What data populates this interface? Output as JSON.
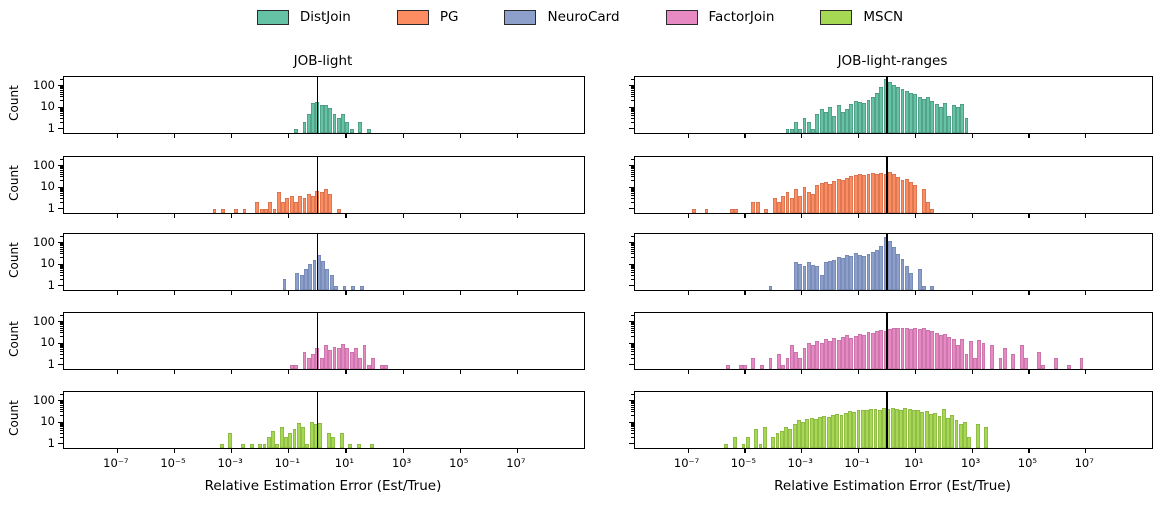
{
  "figure": {
    "description": "Histograms of relative estimation error per estimator on two benchmarks"
  },
  "legend": {
    "items": [
      {
        "label": "DistJoin",
        "color": "#66c2a5",
        "edge": "#478f79"
      },
      {
        "label": "PG",
        "color": "#fc8d62",
        "edge": "#c96b48"
      },
      {
        "label": "NeuroCard",
        "color": "#8da0cb",
        "edge": "#6d81ad"
      },
      {
        "label": "FactorJoin",
        "color": "#e78ac3",
        "edge": "#bd6ba0"
      },
      {
        "label": "MSCN",
        "color": "#a6d854",
        "edge": "#83ad3e"
      }
    ]
  },
  "chart_data": {
    "type": "bar",
    "subtype": "log-log histogram small-multiples, 2 columns x 5 rows",
    "xlabel": "Relative Estimation Error (Est/True)",
    "ylabel": "Count",
    "x_scale": "log10",
    "y_scale": "log10",
    "xlim_log10": [
      -8.85,
      9.35
    ],
    "ylim_log10": [
      -0.2,
      2.4
    ],
    "grid": false,
    "reference_line_x": 1,
    "x_ticks": [
      {
        "label": "10⁻⁷",
        "log10": -7
      },
      {
        "label": "10⁻⁵",
        "log10": -5
      },
      {
        "label": "10⁻³",
        "log10": -3
      },
      {
        "label": "10⁻¹",
        "log10": -1
      },
      {
        "label": "10¹",
        "log10": 1
      },
      {
        "label": "10³",
        "log10": 3
      },
      {
        "label": "10⁵",
        "log10": 5
      },
      {
        "label": "10⁷",
        "log10": 7
      }
    ],
    "y_ticks": [
      {
        "label": "100",
        "value": 100
      },
      {
        "label": "10",
        "value": 10
      },
      {
        "label": "1",
        "value": 1
      }
    ],
    "y_minor_ticks": [
      2,
      3,
      4,
      5,
      6,
      7,
      8,
      9,
      20,
      30,
      40,
      50,
      60,
      70,
      80,
      90,
      200
    ],
    "bin_width_log10": 0.15,
    "columns": [
      {
        "title": "JOB-light",
        "series": [
          {
            "name": "DistJoin",
            "color": "#66c2a5",
            "edge": "#478f79",
            "start_log10": -0.8,
            "counts": [
              1,
              0,
              2,
              5,
              15,
              17,
              13,
              13,
              9,
              5,
              3,
              5,
              2,
              1,
              0,
              2,
              0,
              1
            ]
          },
          {
            "name": "PG",
            "color": "#fc8d62",
            "edge": "#c96b48",
            "start_log10": -3.65,
            "counts": [
              1,
              0,
              1,
              0,
              0,
              1,
              0,
              1,
              0,
              0,
              2,
              1,
              1,
              2,
              1,
              6,
              2,
              3,
              4,
              2,
              4,
              3,
              5,
              4,
              7,
              6,
              8,
              5,
              0,
              1
            ]
          },
          {
            "name": "NeuroCard",
            "color": "#8da0cb",
            "edge": "#6d81ad",
            "start_log10": -1.2,
            "counts": [
              2,
              0,
              0,
              4,
              3,
              6,
              10,
              16,
              26,
              14,
              6,
              3,
              1,
              0,
              1,
              0,
              1,
              0,
              1
            ]
          },
          {
            "name": "FactorJoin",
            "color": "#e78ac3",
            "edge": "#bd6ba0",
            "start_log10": -0.95,
            "counts": [
              1,
              1,
              0,
              4,
              2,
              3,
              6,
              2,
              8,
              5,
              7,
              6,
              9,
              6,
              4,
              6,
              2,
              8,
              1,
              2,
              0,
              1,
              1
            ]
          },
          {
            "name": "MSCN",
            "color": "#a6d854",
            "edge": "#83ad3e",
            "start_log10": -3.4,
            "counts": [
              1,
              0,
              3,
              0,
              0,
              1,
              0,
              1,
              0,
              1,
              1,
              2,
              4,
              1,
              6,
              2,
              3,
              5,
              9,
              6,
              1,
              10,
              8,
              9,
              0,
              3,
              2,
              0,
              3,
              0,
              1,
              0,
              1,
              0,
              0,
              1
            ]
          }
        ]
      },
      {
        "title": "JOB-light-ranges",
        "series": [
          {
            "name": "DistJoin",
            "color": "#66c2a5",
            "edge": "#478f79",
            "start_log10": -3.55,
            "counts": [
              1,
              1,
              2,
              1,
              3,
              2,
              1,
              5,
              8,
              6,
              10,
              4,
              12,
              6,
              8,
              14,
              20,
              18,
              16,
              22,
              30,
              45,
              90,
              200,
              150,
              110,
              90,
              70,
              55,
              45,
              40,
              30,
              25,
              30,
              20,
              14,
              10,
              16,
              4,
              13,
              10,
              14,
              3
            ]
          },
          {
            "name": "PG",
            "color": "#fc8d62",
            "edge": "#c96b48",
            "start_log10": -6.85,
            "counts": [
              1,
              0,
              0,
              1,
              0,
              0,
              0,
              0,
              0,
              1,
              1,
              0,
              0,
              0,
              2,
              2,
              0,
              1,
              0,
              3,
              2,
              4,
              6,
              3,
              8,
              4,
              10,
              6,
              5,
              12,
              15,
              18,
              14,
              20,
              25,
              22,
              28,
              32,
              35,
              40,
              38,
              42,
              45,
              40,
              44,
              42,
              48,
              40,
              30,
              22,
              25,
              18,
              12,
              0,
              8,
              2,
              1
            ]
          },
          {
            "name": "NeuroCard",
            "color": "#8da0cb",
            "edge": "#6d81ad",
            "start_log10": -4.15,
            "counts": [
              1,
              0,
              0,
              0,
              0,
              0,
              12,
              10,
              8,
              12,
              9,
              8,
              3,
              12,
              14,
              16,
              22,
              20,
              28,
              25,
              32,
              28,
              25,
              30,
              35,
              45,
              70,
              180,
              120,
              60,
              30,
              18,
              8,
              4,
              0,
              6,
              1,
              0,
              1,
              0
            ]
          },
          {
            "name": "FactorJoin",
            "color": "#e78ac3",
            "edge": "#bd6ba0",
            "start_log10": -5.65,
            "counts": [
              1,
              0,
              0,
              1,
              1,
              0,
              2,
              0,
              1,
              0,
              2,
              0,
              3,
              1,
              2,
              8,
              4,
              2,
              6,
              10,
              8,
              12,
              10,
              15,
              12,
              18,
              14,
              20,
              25,
              18,
              22,
              28,
              25,
              32,
              30,
              35,
              40,
              38,
              45,
              50,
              48,
              52,
              50,
              46,
              50,
              44,
              48,
              40,
              35,
              30,
              25,
              28,
              20,
              15,
              8,
              15,
              3,
              12,
              2,
              14,
              10,
              0,
              8,
              0,
              2,
              6,
              0,
              3,
              0,
              8,
              2,
              0,
              0,
              4,
              1,
              0,
              0,
              2,
              0,
              0,
              1,
              0,
              0,
              2
            ]
          },
          {
            "name": "MSCN",
            "color": "#a6d854",
            "edge": "#83ad3e",
            "start_log10": -5.7,
            "counts": [
              1,
              0,
              2,
              0,
              1,
              2,
              0,
              5,
              1,
              6,
              0,
              2,
              3,
              4,
              6,
              5,
              8,
              12,
              10,
              14,
              16,
              14,
              18,
              20,
              18,
              22,
              25,
              22,
              28,
              32,
              30,
              35,
              38,
              35,
              40,
              42,
              38,
              45,
              40,
              44,
              42,
              38,
              44,
              40,
              35,
              38,
              30,
              33,
              25,
              28,
              20,
              40,
              15,
              22,
              12,
              8,
              10,
              2,
              0,
              8,
              0,
              6
            ]
          }
        ]
      }
    ]
  }
}
